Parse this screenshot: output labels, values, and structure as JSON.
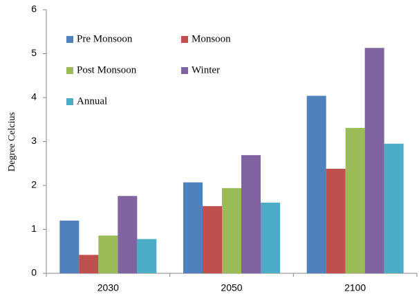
{
  "chart_data": {
    "type": "bar",
    "y_label": "Degree Celcius",
    "categories": [
      "2030",
      "2050",
      "2100"
    ],
    "series": [
      {
        "name": "Pre Monsoon",
        "color": "#4f81bd",
        "values": [
          1.2,
          2.07,
          4.04
        ]
      },
      {
        "name": "Monsoon",
        "color": "#c0504d",
        "values": [
          0.42,
          1.53,
          2.38
        ]
      },
      {
        "name": "Post Monsoon",
        "color": "#9bbb59",
        "values": [
          0.86,
          1.94,
          3.31
        ]
      },
      {
        "name": "Winter",
        "color": "#8064a2",
        "values": [
          1.76,
          2.69,
          5.13
        ]
      },
      {
        "name": "Annual",
        "color": "#4bacc6",
        "values": [
          0.78,
          1.61,
          2.95
        ]
      }
    ],
    "ylim": [
      0,
      6
    ],
    "yticks": [
      0,
      1,
      2,
      3,
      4,
      5,
      6
    ],
    "grid": false,
    "legend": "top-left"
  }
}
